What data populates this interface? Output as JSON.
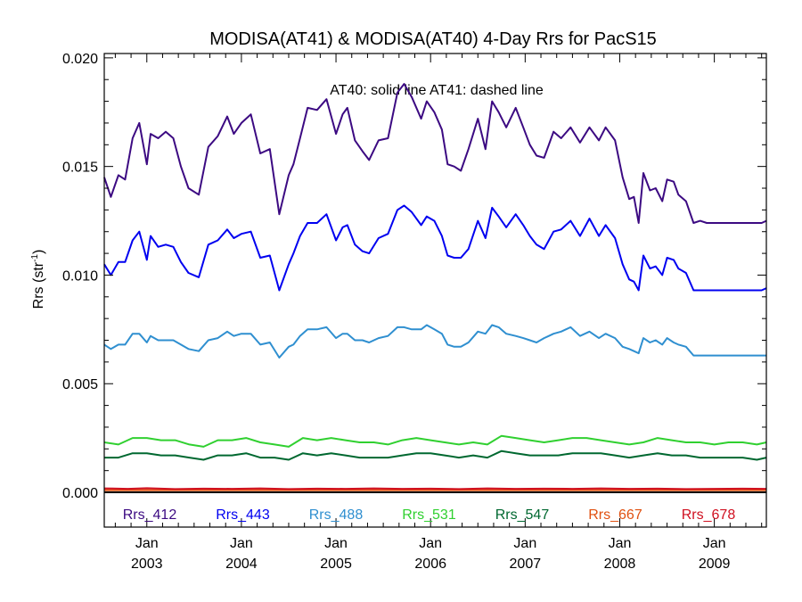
{
  "chart_data": {
    "type": "line",
    "title": "MODISA(AT41) & MODISA(AT40) 4-Day Rrs for PacS15",
    "ylabel_base": "Rrs (str",
    "ylabel_sup": "-1",
    "ylabel_close": ")",
    "annotation": "AT40: solid line   AT41: dashed line",
    "ylim": [
      -0.0016,
      0.0202
    ],
    "xlim": [
      2002.55,
      2009.55
    ],
    "yticks": [
      {
        "value": 0.0,
        "label": "0.000"
      },
      {
        "value": 0.005,
        "label": "0.005"
      },
      {
        "value": 0.01,
        "label": "0.010"
      },
      {
        "value": 0.015,
        "label": "0.015"
      },
      {
        "value": 0.02,
        "label": "0.020"
      }
    ],
    "xticks": [
      {
        "value": 2003.0,
        "month": "Jan",
        "year": "2003"
      },
      {
        "value": 2004.0,
        "month": "Jan",
        "year": "2004"
      },
      {
        "value": 2005.0,
        "month": "Jan",
        "year": "2005"
      },
      {
        "value": 2006.0,
        "month": "Jan",
        "year": "2006"
      },
      {
        "value": 2007.0,
        "month": "Jan",
        "year": "2007"
      },
      {
        "value": 2008.0,
        "month": "Jan",
        "year": "2008"
      },
      {
        "value": 2009.0,
        "month": "Jan",
        "year": "2009"
      }
    ],
    "zero_line": 0.0,
    "series": [
      {
        "name": "Rrs_412",
        "color": "#3c0a82",
        "x": [
          2002.55,
          2002.62,
          2002.7,
          2002.77,
          2002.85,
          2002.92,
          2003.0,
          2003.04,
          2003.12,
          2003.2,
          2003.28,
          2003.36,
          2003.44,
          2003.55,
          2003.65,
          2003.75,
          2003.85,
          2003.92,
          2004.0,
          2004.1,
          2004.2,
          2004.3,
          2004.4,
          2004.5,
          2004.55,
          2004.62,
          2004.7,
          2004.8,
          2004.9,
          2005.0,
          2005.07,
          2005.12,
          2005.2,
          2005.28,
          2005.35,
          2005.45,
          2005.55,
          2005.65,
          2005.72,
          2005.8,
          2005.9,
          2005.96,
          2006.04,
          2006.12,
          2006.18,
          2006.25,
          2006.32,
          2006.4,
          2006.5,
          2006.58,
          2006.65,
          2006.72,
          2006.8,
          2006.9,
          2006.98,
          2007.05,
          2007.12,
          2007.2,
          2007.25,
          2007.3,
          2007.38,
          2007.48,
          2007.58,
          2007.68,
          2007.78,
          2007.85,
          2007.95,
          2008.03,
          2008.1,
          2008.15,
          2008.2,
          2008.25,
          2008.32,
          2008.38,
          2008.45,
          2008.5,
          2008.57,
          2008.62,
          2008.7,
          2008.78,
          2008.85,
          2008.92,
          2009.0,
          2009.05,
          2009.1,
          2009.15,
          2009.22,
          2009.3,
          2009.35,
          2009.42,
          2009.5,
          2009.55
        ],
        "y": [
          0.0145,
          0.0136,
          0.0146,
          0.0144,
          0.0163,
          0.017,
          0.0151,
          0.0165,
          0.0163,
          0.0166,
          0.0163,
          0.015,
          0.014,
          0.0137,
          0.0159,
          0.0164,
          0.0173,
          0.0165,
          0.017,
          0.0174,
          0.0156,
          0.0158,
          0.0128,
          0.0146,
          0.0151,
          0.0163,
          0.0177,
          0.0176,
          0.0181,
          0.0165,
          0.0174,
          0.0177,
          0.0162,
          0.0157,
          0.0153,
          0.0162,
          0.0163,
          0.0184,
          0.0188,
          0.0182,
          0.0172,
          0.018,
          0.0175,
          0.0167,
          0.0151,
          0.015,
          0.0148,
          0.0158,
          0.0172,
          0.0158,
          0.018,
          0.0175,
          0.0168,
          0.0177,
          0.0168,
          0.016,
          0.0155,
          0.0154,
          0.016,
          0.0166,
          0.0163,
          0.0168,
          0.0161,
          0.0168,
          0.0162,
          0.0168,
          0.0162,
          0.0145,
          0.0135,
          0.0136,
          0.0124,
          0.0147,
          0.0139,
          0.014,
          0.0134,
          0.0144,
          0.0143,
          0.0137,
          0.0134,
          0.0124,
          0.0125,
          0.0124,
          0.0124,
          0.0124,
          0.0124,
          0.0124,
          0.0124,
          0.0124,
          0.0124,
          0.0124,
          0.0124,
          0.0125
        ]
      },
      {
        "name": "Rrs_443",
        "color": "#0000f0",
        "x": [
          2002.55,
          2002.62,
          2002.7,
          2002.77,
          2002.85,
          2002.92,
          2003.0,
          2003.04,
          2003.12,
          2003.2,
          2003.28,
          2003.36,
          2003.44,
          2003.55,
          2003.65,
          2003.75,
          2003.85,
          2003.92,
          2004.0,
          2004.1,
          2004.2,
          2004.3,
          2004.4,
          2004.5,
          2004.55,
          2004.62,
          2004.7,
          2004.8,
          2004.9,
          2005.0,
          2005.07,
          2005.12,
          2005.2,
          2005.28,
          2005.35,
          2005.45,
          2005.55,
          2005.65,
          2005.72,
          2005.8,
          2005.9,
          2005.96,
          2006.04,
          2006.12,
          2006.18,
          2006.25,
          2006.32,
          2006.4,
          2006.5,
          2006.58,
          2006.65,
          2006.72,
          2006.8,
          2006.9,
          2006.98,
          2007.05,
          2007.12,
          2007.2,
          2007.25,
          2007.3,
          2007.38,
          2007.48,
          2007.58,
          2007.68,
          2007.78,
          2007.85,
          2007.95,
          2008.03,
          2008.1,
          2008.15,
          2008.2,
          2008.25,
          2008.32,
          2008.38,
          2008.45,
          2008.5,
          2008.57,
          2008.62,
          2008.7,
          2008.78,
          2008.85,
          2008.92,
          2009.0,
          2009.05,
          2009.1,
          2009.15,
          2009.22,
          2009.3,
          2009.35,
          2009.42,
          2009.5,
          2009.55
        ],
        "y": [
          0.0105,
          0.01,
          0.0106,
          0.0106,
          0.0116,
          0.012,
          0.0107,
          0.0118,
          0.0113,
          0.0114,
          0.0113,
          0.0106,
          0.0101,
          0.0099,
          0.0114,
          0.0116,
          0.0121,
          0.0117,
          0.0119,
          0.012,
          0.0108,
          0.0109,
          0.0093,
          0.0105,
          0.011,
          0.0118,
          0.0124,
          0.0124,
          0.0128,
          0.0116,
          0.0122,
          0.0123,
          0.0114,
          0.0111,
          0.011,
          0.0117,
          0.0119,
          0.013,
          0.0132,
          0.0129,
          0.0123,
          0.0127,
          0.0125,
          0.0118,
          0.0109,
          0.0108,
          0.0108,
          0.0112,
          0.0125,
          0.0117,
          0.0131,
          0.0127,
          0.0122,
          0.0128,
          0.0123,
          0.0118,
          0.0114,
          0.0112,
          0.0116,
          0.012,
          0.0121,
          0.0125,
          0.0118,
          0.0126,
          0.0118,
          0.0123,
          0.0117,
          0.0105,
          0.0098,
          0.0097,
          0.0093,
          0.0109,
          0.0103,
          0.0104,
          0.01,
          0.0108,
          0.0107,
          0.0103,
          0.0101,
          0.0093,
          0.0093,
          0.0093,
          0.0093,
          0.0093,
          0.0093,
          0.0093,
          0.0093,
          0.0093,
          0.0093,
          0.0093,
          0.0093,
          0.0094
        ]
      },
      {
        "name": "Rrs_488",
        "color": "#2f8fd0",
        "x": [
          2002.55,
          2002.62,
          2002.7,
          2002.77,
          2002.85,
          2002.92,
          2003.0,
          2003.04,
          2003.12,
          2003.2,
          2003.28,
          2003.36,
          2003.44,
          2003.55,
          2003.65,
          2003.75,
          2003.85,
          2003.92,
          2004.0,
          2004.1,
          2004.2,
          2004.3,
          2004.4,
          2004.5,
          2004.55,
          2004.62,
          2004.7,
          2004.8,
          2004.9,
          2005.0,
          2005.07,
          2005.12,
          2005.2,
          2005.28,
          2005.35,
          2005.45,
          2005.55,
          2005.65,
          2005.72,
          2005.8,
          2005.9,
          2005.96,
          2006.04,
          2006.12,
          2006.18,
          2006.25,
          2006.32,
          2006.4,
          2006.5,
          2006.58,
          2006.65,
          2006.72,
          2006.8,
          2006.9,
          2006.98,
          2007.05,
          2007.12,
          2007.2,
          2007.25,
          2007.3,
          2007.38,
          2007.48,
          2007.58,
          2007.68,
          2007.78,
          2007.85,
          2007.95,
          2008.03,
          2008.1,
          2008.15,
          2008.2,
          2008.25,
          2008.32,
          2008.38,
          2008.45,
          2008.5,
          2008.57,
          2008.62,
          2008.7,
          2008.78,
          2008.85,
          2008.92,
          2009.0,
          2009.05,
          2009.1,
          2009.15,
          2009.22,
          2009.3,
          2009.35,
          2009.42,
          2009.5,
          2009.55
        ],
        "y": [
          0.0068,
          0.0066,
          0.0068,
          0.0068,
          0.0073,
          0.0073,
          0.0069,
          0.0072,
          0.007,
          0.007,
          0.007,
          0.0068,
          0.0066,
          0.0065,
          0.007,
          0.0071,
          0.0074,
          0.0072,
          0.0073,
          0.0073,
          0.0068,
          0.0069,
          0.0062,
          0.0067,
          0.0068,
          0.0072,
          0.0075,
          0.0075,
          0.0076,
          0.0071,
          0.0073,
          0.0073,
          0.007,
          0.007,
          0.0069,
          0.0071,
          0.0072,
          0.0076,
          0.0076,
          0.0075,
          0.0075,
          0.0077,
          0.0075,
          0.0073,
          0.0068,
          0.0067,
          0.0067,
          0.0069,
          0.0074,
          0.0073,
          0.0077,
          0.0076,
          0.0073,
          0.0072,
          0.0071,
          0.007,
          0.0069,
          0.0071,
          0.0072,
          0.0073,
          0.0074,
          0.0076,
          0.0072,
          0.0074,
          0.0071,
          0.0073,
          0.0071,
          0.0067,
          0.0066,
          0.0065,
          0.0064,
          0.0071,
          0.0069,
          0.007,
          0.0068,
          0.0071,
          0.0069,
          0.0068,
          0.0067,
          0.0063,
          0.0063,
          0.0063,
          0.0063,
          0.0063,
          0.0063,
          0.0063,
          0.0063,
          0.0063,
          0.0063,
          0.0063,
          0.0063,
          0.0063
        ]
      },
      {
        "name": "Rrs_531",
        "color": "#30d030",
        "x": [
          2002.55,
          2002.7,
          2002.85,
          2003.0,
          2003.15,
          2003.3,
          2003.45,
          2003.6,
          2003.75,
          2003.9,
          2004.05,
          2004.2,
          2004.35,
          2004.5,
          2004.65,
          2004.8,
          2004.95,
          2005.1,
          2005.25,
          2005.4,
          2005.55,
          2005.7,
          2005.85,
          2006.0,
          2006.15,
          2006.3,
          2006.45,
          2006.6,
          2006.75,
          2006.9,
          2007.05,
          2007.2,
          2007.35,
          2007.5,
          2007.65,
          2007.8,
          2007.95,
          2008.1,
          2008.25,
          2008.4,
          2008.55,
          2008.7,
          2008.85,
          2009.0,
          2009.15,
          2009.3,
          2009.45,
          2009.55
        ],
        "y": [
          0.0023,
          0.0022,
          0.0025,
          0.0025,
          0.0024,
          0.0024,
          0.0022,
          0.0021,
          0.0024,
          0.0024,
          0.0025,
          0.0023,
          0.0022,
          0.0021,
          0.0025,
          0.0024,
          0.0025,
          0.0024,
          0.0023,
          0.0023,
          0.0022,
          0.0024,
          0.0025,
          0.0024,
          0.0023,
          0.0022,
          0.0023,
          0.0022,
          0.0026,
          0.0025,
          0.0024,
          0.0023,
          0.0024,
          0.0025,
          0.0025,
          0.0024,
          0.0023,
          0.0022,
          0.0023,
          0.0025,
          0.0024,
          0.0023,
          0.0023,
          0.0022,
          0.0023,
          0.0023,
          0.0022,
          0.0023
        ]
      },
      {
        "name": "Rrs_547",
        "color": "#006830",
        "x": [
          2002.55,
          2002.7,
          2002.85,
          2003.0,
          2003.15,
          2003.3,
          2003.45,
          2003.6,
          2003.75,
          2003.9,
          2004.05,
          2004.2,
          2004.35,
          2004.5,
          2004.65,
          2004.8,
          2004.95,
          2005.1,
          2005.25,
          2005.4,
          2005.55,
          2005.7,
          2005.85,
          2006.0,
          2006.15,
          2006.3,
          2006.45,
          2006.6,
          2006.75,
          2006.9,
          2007.05,
          2007.2,
          2007.35,
          2007.5,
          2007.65,
          2007.8,
          2007.95,
          2008.1,
          2008.25,
          2008.4,
          2008.55,
          2008.7,
          2008.85,
          2009.0,
          2009.15,
          2009.3,
          2009.45,
          2009.55
        ],
        "y": [
          0.0016,
          0.0016,
          0.0018,
          0.0018,
          0.0017,
          0.0017,
          0.0016,
          0.0015,
          0.0017,
          0.0017,
          0.0018,
          0.0016,
          0.0016,
          0.0015,
          0.0018,
          0.0017,
          0.0018,
          0.0017,
          0.0016,
          0.0016,
          0.0016,
          0.0017,
          0.0018,
          0.0018,
          0.0017,
          0.0016,
          0.0017,
          0.0016,
          0.0019,
          0.0018,
          0.0017,
          0.0017,
          0.0017,
          0.0018,
          0.0018,
          0.0018,
          0.0017,
          0.0016,
          0.0017,
          0.0018,
          0.0017,
          0.0017,
          0.0016,
          0.0016,
          0.0016,
          0.0016,
          0.0015,
          0.0016
        ]
      },
      {
        "name": "Rrs_667",
        "color": "#e05010",
        "x": [
          2002.55,
          2003.0,
          2003.5,
          2004.0,
          2004.5,
          2005.0,
          2005.5,
          2006.0,
          2006.5,
          2007.0,
          2007.5,
          2008.0,
          2008.5,
          2009.0,
          2009.55
        ],
        "y": [
          0.0001,
          0.0001,
          0.0001,
          0.0001,
          0.0001,
          0.0001,
          0.0001,
          0.0001,
          0.0001,
          0.0001,
          0.0001,
          0.0001,
          0.0001,
          0.0001,
          0.0001
        ]
      },
      {
        "name": "Rrs_678",
        "color": "#d01020",
        "x": [
          2002.55,
          2002.8,
          2003.0,
          2003.3,
          2003.6,
          2003.9,
          2004.2,
          2004.5,
          2004.8,
          2005.1,
          2005.4,
          2005.7,
          2006.0,
          2006.3,
          2006.6,
          2006.9,
          2007.2,
          2007.5,
          2007.8,
          2008.1,
          2008.4,
          2008.7,
          2009.0,
          2009.3,
          2009.55
        ],
        "y": [
          0.00018,
          0.00016,
          0.00019,
          0.00015,
          0.00017,
          0.00016,
          0.00018,
          0.00015,
          0.00017,
          0.00016,
          0.00018,
          0.00016,
          0.00017,
          0.00015,
          0.00018,
          0.00016,
          0.00017,
          0.00016,
          0.00018,
          0.00016,
          0.00017,
          0.00015,
          0.00016,
          0.00017,
          0.00016
        ]
      }
    ]
  }
}
